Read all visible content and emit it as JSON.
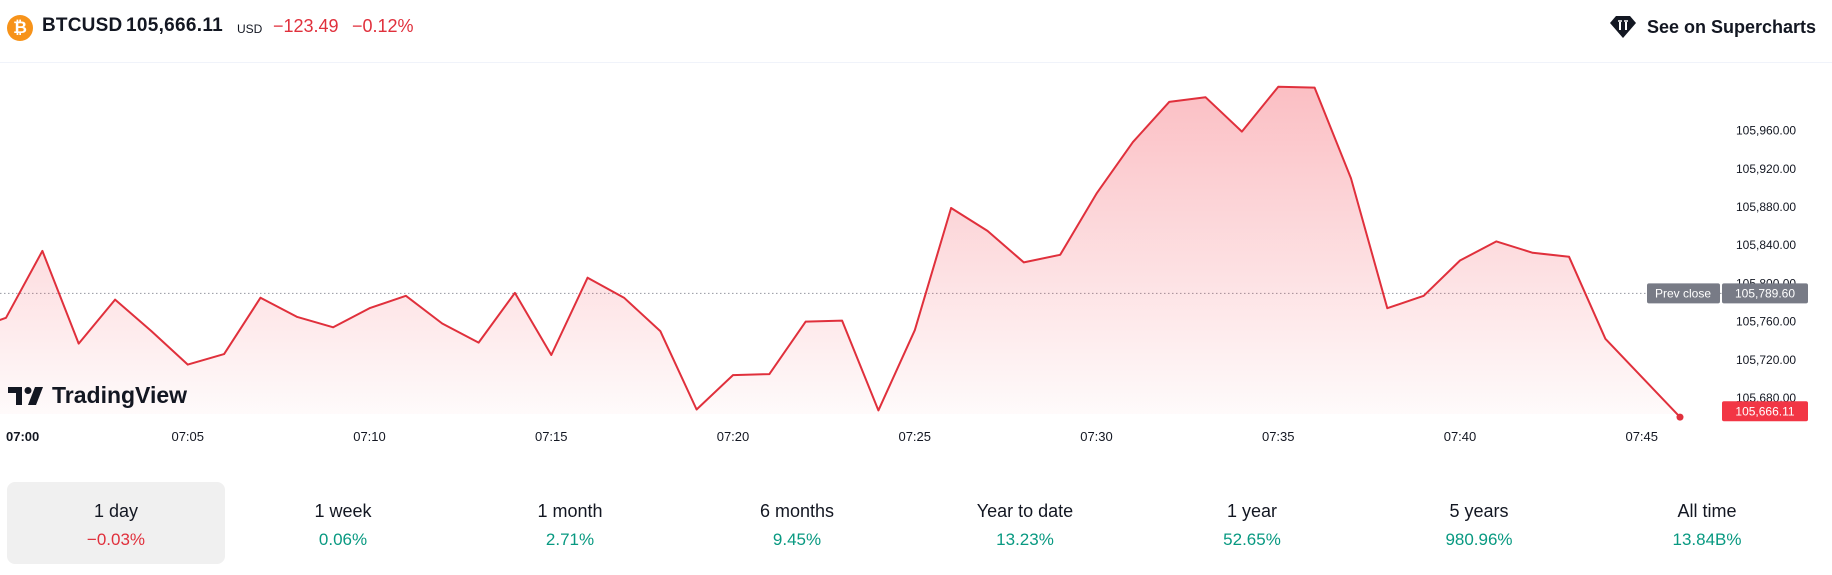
{
  "header": {
    "logo_glyph": "₿",
    "symbol": "BTCUSD",
    "price": "105,666.11",
    "currency": "USD",
    "change": "−123.49",
    "change_percent": "−0.12%",
    "supercharts_label": "See on Supercharts",
    "supercharts_icon": "tradingview-gem-icon"
  },
  "brand": {
    "name": "TradingView"
  },
  "chart_data": {
    "type": "area",
    "title": "",
    "xlabel": "",
    "ylabel": "",
    "x_ticks": [
      "07:00",
      "07:05",
      "07:10",
      "07:15",
      "07:20",
      "07:25",
      "07:30",
      "07:35",
      "07:40",
      "07:45"
    ],
    "y_ticks": [
      "105,680.00",
      "105,720.00",
      "105,760.00",
      "105,800.00",
      "105,840.00",
      "105,880.00",
      "105,920.00",
      "105,960.00"
    ],
    "ylim": [
      105660,
      105998
    ],
    "grid": false,
    "line_color": "#e0303c",
    "x": [
      "06:59",
      "07:00",
      "07:01",
      "07:02",
      "07:03",
      "07:04",
      "07:05",
      "07:06",
      "07:07",
      "07:08",
      "07:09",
      "07:10",
      "07:11",
      "07:12",
      "07:13",
      "07:14",
      "07:15",
      "07:16",
      "07:17",
      "07:18",
      "07:19",
      "07:20",
      "07:21",
      "07:22",
      "07:23",
      "07:24",
      "07:25",
      "07:26",
      "07:27",
      "07:28",
      "07:29",
      "07:30",
      "07:31",
      "07:32",
      "07:33",
      "07:34",
      "07:35",
      "07:36",
      "07:37",
      "07:38",
      "07:39",
      "07:40",
      "07:41",
      "07:42",
      "07:43",
      "07:44",
      "07:45"
    ],
    "values": [
      105750,
      105764,
      105834,
      105737,
      105783,
      105750,
      105715,
      105726,
      105785,
      105765,
      105754,
      105774,
      105787,
      105758,
      105738,
      105790,
      105725,
      105806,
      105785,
      105750,
      105668,
      105704,
      105705,
      105760,
      105761,
      105667,
      105751,
      105879,
      105855,
      105822,
      105830,
      105894,
      105948,
      105990,
      105995,
      105959,
      106006,
      106005,
      105910,
      105774,
      105787,
      105824,
      105844,
      105832,
      105828,
      105742,
      105660
    ],
    "prev_close": {
      "label": "Prev close",
      "value": "105,789.60",
      "value_num": 105789.6
    },
    "last_price": {
      "value": "105,666.11",
      "value_num": 105666.11
    }
  },
  "periods": [
    {
      "label": "1 day",
      "value": "−0.03%",
      "trend": "neg",
      "active": true
    },
    {
      "label": "1 week",
      "value": "0.06%",
      "trend": "pos",
      "active": false
    },
    {
      "label": "1 month",
      "value": "2.71%",
      "trend": "pos",
      "active": false
    },
    {
      "label": "6 months",
      "value": "9.45%",
      "trend": "pos",
      "active": false
    },
    {
      "label": "Year to date",
      "value": "13.23%",
      "trend": "pos",
      "active": false
    },
    {
      "label": "1 year",
      "value": "52.65%",
      "trend": "pos",
      "active": false
    },
    {
      "label": "5 years",
      "value": "980.96%",
      "trend": "pos",
      "active": false
    },
    {
      "label": "All time",
      "value": "13.84B%",
      "trend": "pos",
      "active": false
    }
  ]
}
